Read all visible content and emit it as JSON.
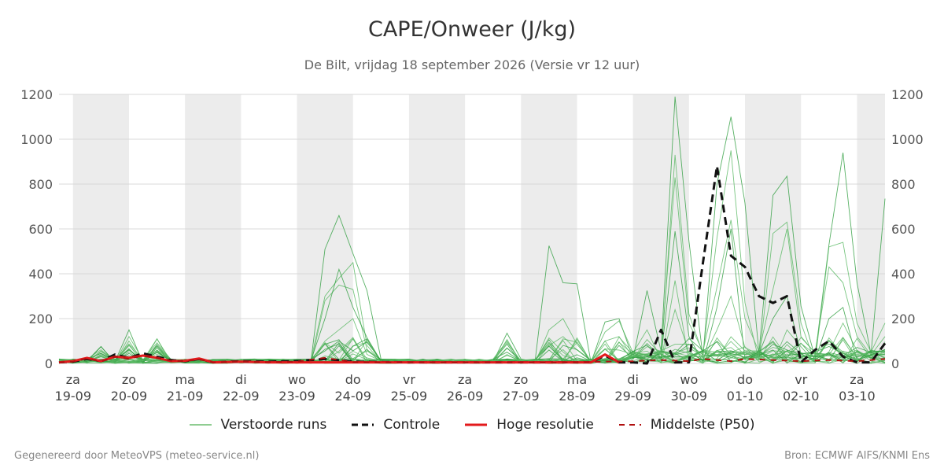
{
  "title": "CAPE/Onweer (J/kg)",
  "subtitle": "De Bilt, vrijdag 18 september 2026 (Versie vr 12 uur)",
  "footer": {
    "left": "Gegenereerd door MeteoVPS (meteo-service.nl)",
    "right": "Bron: ECMWF AIFS/KNMI Ens"
  },
  "legend": [
    {
      "label": "Verstoorde runs",
      "color": "#4caf50",
      "style": "thin"
    },
    {
      "label": "Controle",
      "color": "#111111",
      "style": "dashed"
    },
    {
      "label": "Hoge resolutie",
      "color": "#e31a1c",
      "style": "solid"
    },
    {
      "label": "Middelste (P50)",
      "color": "#b01010",
      "style": "dashed"
    }
  ],
  "chart_data": {
    "type": "line",
    "x_unit": "days from 2026-09-19",
    "xlim": [
      -0.25,
      14.5
    ],
    "ylim": [
      0,
      1200
    ],
    "y_ticks": [
      0,
      200,
      400,
      600,
      800,
      1000,
      1200
    ],
    "grid": true,
    "legend_position": "bottom",
    "x_ticks": [
      {
        "day": "za",
        "date": "19-09"
      },
      {
        "day": "zo",
        "date": "20-09"
      },
      {
        "day": "ma",
        "date": "21-09"
      },
      {
        "day": "di",
        "date": "22-09"
      },
      {
        "day": "wo",
        "date": "23-09"
      },
      {
        "day": "do",
        "date": "24-09"
      },
      {
        "day": "vr",
        "date": "25-09"
      },
      {
        "day": "za",
        "date": "26-09"
      },
      {
        "day": "zo",
        "date": "27-09"
      },
      {
        "day": "ma",
        "date": "28-09"
      },
      {
        "day": "di",
        "date": "29-09"
      },
      {
        "day": "wo",
        "date": "30-09"
      },
      {
        "day": "do",
        "date": "01-10"
      },
      {
        "day": "vr",
        "date": "02-10"
      },
      {
        "day": "za",
        "date": "03-10"
      }
    ],
    "shaded_bands": [
      [
        0,
        1
      ],
      [
        2,
        3
      ],
      [
        4,
        5
      ],
      [
        6,
        7
      ],
      [
        8,
        9
      ],
      [
        10,
        11
      ],
      [
        12,
        13
      ],
      [
        14,
        14.5
      ]
    ],
    "series": [
      {
        "name": "Controle",
        "color": "#111111",
        "x": [
          -0.25,
          0,
          0.25,
          0.5,
          0.75,
          1,
          1.25,
          1.5,
          1.75,
          2,
          2.25,
          2.5,
          3,
          3.5,
          4,
          4.5,
          5,
          5.5,
          6,
          6.5,
          7,
          7.5,
          8,
          8.5,
          9,
          9.25,
          9.5,
          9.75,
          10,
          10.25,
          10.5,
          10.75,
          11,
          11.25,
          11.5,
          11.75,
          12,
          12.25,
          12.5,
          12.75,
          13,
          13.25,
          13.5,
          13.75,
          14,
          14.25,
          14.5
        ],
        "y": [
          5,
          8,
          20,
          10,
          40,
          25,
          45,
          30,
          15,
          10,
          20,
          5,
          10,
          8,
          10,
          20,
          8,
          6,
          5,
          5,
          5,
          5,
          5,
          5,
          5,
          5,
          35,
          5,
          5,
          0,
          150,
          5,
          5,
          450,
          880,
          480,
          430,
          300,
          270,
          300,
          5,
          60,
          100,
          30,
          5,
          5,
          90
        ]
      },
      {
        "name": "Hoge resolutie",
        "color": "#e31a1c",
        "x": [
          -0.25,
          0,
          0.25,
          0.5,
          0.75,
          1,
          1.25,
          1.5,
          1.75,
          2,
          2.25,
          2.5,
          3,
          3.5,
          4,
          4.5,
          5,
          5.5,
          6,
          6.5,
          7,
          7.5,
          8,
          8.5,
          9,
          9.25,
          9.5,
          9.75
        ],
        "y": [
          5,
          10,
          25,
          10,
          30,
          25,
          35,
          25,
          10,
          12,
          22,
          5,
          8,
          5,
          5,
          5,
          5,
          5,
          5,
          5,
          5,
          5,
          5,
          5,
          5,
          5,
          40,
          5
        ]
      },
      {
        "name": "Middelste (P50)",
        "color": "#b01010",
        "x": [
          -0.25,
          0,
          0.25,
          0.5,
          0.75,
          1,
          1.25,
          1.5,
          1.75,
          2,
          2.25,
          2.5,
          3,
          3.5,
          4,
          4.5,
          5,
          5.5,
          6,
          6.5,
          7,
          7.5,
          8,
          8.5,
          9,
          9.5,
          10,
          10.5,
          11,
          11.25,
          11.5,
          11.75,
          12,
          12.5,
          13,
          13.5,
          14,
          14.5
        ],
        "y": [
          5,
          8,
          22,
          8,
          30,
          20,
          35,
          25,
          12,
          10,
          18,
          5,
          8,
          6,
          8,
          25,
          6,
          5,
          5,
          5,
          5,
          5,
          5,
          5,
          5,
          8,
          10,
          15,
          10,
          20,
          15,
          10,
          20,
          15,
          10,
          15,
          10,
          20
        ]
      }
    ],
    "perturbed_runs": {
      "name": "Verstoorde runs",
      "color": "#4caf50",
      "count": 26,
      "x_start": -0.25,
      "x_step": 0.25,
      "peaks": [
        {
          "x": 0.5,
          "values": [
            40,
            30,
            20,
            45,
            35
          ]
        },
        {
          "x": 1.0,
          "values": [
            150,
            80,
            100,
            60,
            120
          ]
        },
        {
          "x": 1.5,
          "values": [
            85,
            70,
            60,
            50,
            75
          ]
        },
        {
          "x": 4.5,
          "values": [
            510,
            300,
            280,
            200,
            100
          ]
        },
        {
          "x": 4.75,
          "values": [
            660,
            380,
            350,
            420,
            150
          ]
        },
        {
          "x": 5.0,
          "values": [
            490,
            450,
            330,
            250,
            200
          ]
        },
        {
          "x": 5.25,
          "values": [
            325,
            80,
            60
          ]
        },
        {
          "x": 7.75,
          "values": [
            135,
            70,
            40
          ]
        },
        {
          "x": 8.5,
          "values": [
            525,
            150,
            80,
            60
          ]
        },
        {
          "x": 8.75,
          "values": [
            360,
            200,
            120
          ]
        },
        {
          "x": 9.0,
          "values": [
            355,
            85,
            60
          ]
        },
        {
          "x": 9.5,
          "values": [
            185,
            140,
            100
          ]
        },
        {
          "x": 9.75,
          "values": [
            200,
            190,
            120,
            80
          ]
        },
        {
          "x": 10.25,
          "values": [
            325,
            150,
            75
          ]
        },
        {
          "x": 10.75,
          "values": [
            1190,
            930,
            830,
            590,
            370,
            240
          ]
        },
        {
          "x": 11.0,
          "values": [
            545,
            220,
            180,
            120
          ]
        },
        {
          "x": 11.5,
          "values": [
            800,
            560,
            340,
            250,
            150
          ]
        },
        {
          "x": 11.75,
          "values": [
            1100,
            950,
            640,
            600,
            300
          ]
        },
        {
          "x": 12.0,
          "values": [
            715,
            270,
            200
          ]
        },
        {
          "x": 12.5,
          "values": [
            750,
            580,
            330,
            200
          ]
        },
        {
          "x": 12.75,
          "values": [
            835,
            630,
            600,
            300,
            150
          ]
        },
        {
          "x": 13.0,
          "values": [
            255,
            180,
            120
          ]
        },
        {
          "x": 13.5,
          "values": [
            530,
            520,
            430,
            200
          ]
        },
        {
          "x": 13.75,
          "values": [
            940,
            540,
            360,
            250,
            180
          ]
        },
        {
          "x": 14.0,
          "values": [
            360,
            180,
            120
          ]
        },
        {
          "x": 14.5,
          "values": [
            735,
            180,
            120
          ]
        }
      ]
    }
  }
}
